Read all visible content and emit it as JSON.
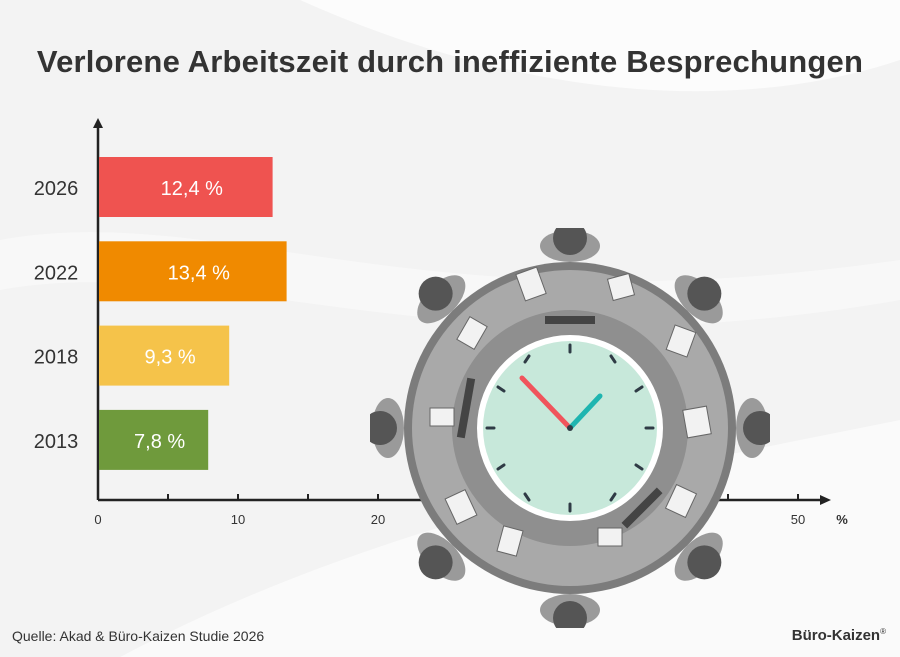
{
  "header": {
    "title": "Verlorene Arbeitszeit durch ineffiziente Besprechungen"
  },
  "chart_data": {
    "type": "bar",
    "orientation": "horizontal",
    "title": "Verlorene Arbeitszeit durch ineffiziente Besprechungen",
    "categories": [
      "2026",
      "2022",
      "2018",
      "2013"
    ],
    "values": [
      12.4,
      13.4,
      9.3,
      7.8
    ],
    "value_labels": [
      "12,4 %",
      "13,4 %",
      "9,3 %",
      "7,8 %"
    ],
    "colors": [
      "#ef5350",
      "#f08a00",
      "#f5c34a",
      "#6f9a3c"
    ],
    "xlim": [
      0,
      50
    ],
    "x_tick_labels": [
      {
        "value": 0,
        "label": "0"
      },
      {
        "value": 10,
        "label": "10"
      },
      {
        "value": 20,
        "label": "20"
      },
      {
        "value": 50,
        "label": "50"
      }
    ],
    "x_minor_ticks": [
      5,
      10,
      15,
      20,
      25,
      45,
      50
    ],
    "x_unit": "%"
  },
  "illustration": {
    "name": "meeting-table-clock"
  },
  "footer": {
    "source": "Quelle: Akad & Büro-Kaizen Studie 2026",
    "brand": "Büro-Kaizen",
    "brand_mark": "®"
  }
}
